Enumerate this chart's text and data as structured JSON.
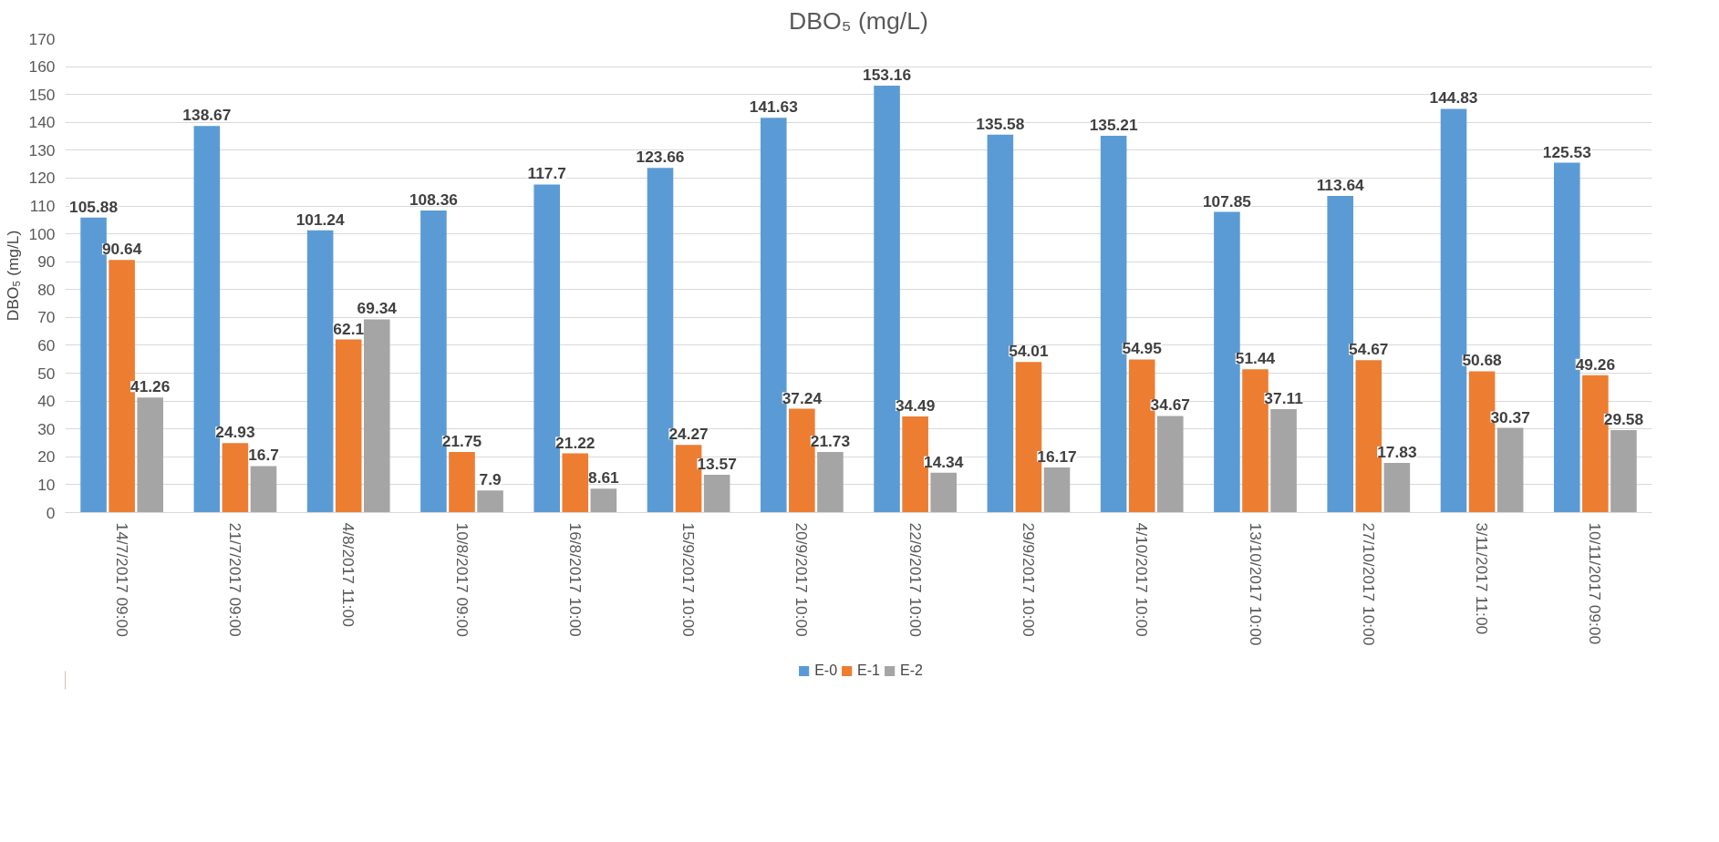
{
  "chart_data": {
    "type": "bar",
    "title": "DBO₅ (mg/L)",
    "ylabel": "DBO₅ (mg/L)",
    "categories": [
      "14/7/2017 09:00",
      "21/7/2017 09:00",
      "4/8/2017 11:00",
      "10/8/2017 09:00",
      "16/8/2017 10:00",
      "15/9/2017 10:00",
      "20/9/2017 10:00",
      "22/9/2017 10:00",
      "29/9/2017 10:00",
      "4/10/2017 10:00",
      "13/10/2017 10:00",
      "27/10/2017 10:00",
      "3/11/2017 11:00",
      "10/11/2017 09:00"
    ],
    "series": [
      {
        "name": "E-0",
        "color": "#5b9bd5",
        "values": [
          105.88,
          138.67,
          101.24,
          108.36,
          117.7,
          123.66,
          141.63,
          153.16,
          135.58,
          135.21,
          107.85,
          113.64,
          144.83,
          125.53
        ]
      },
      {
        "name": "E-1",
        "color": "#ed7d31",
        "values": [
          90.64,
          24.93,
          62.1,
          21.75,
          21.22,
          24.27,
          37.24,
          34.49,
          54.01,
          54.95,
          51.44,
          54.67,
          50.68,
          49.26
        ]
      },
      {
        "name": "E-2",
        "color": "#a5a5a5",
        "values": [
          41.26,
          16.7,
          69.34,
          7.9,
          8.61,
          13.57,
          21.73,
          14.34,
          16.17,
          34.67,
          37.11,
          17.83,
          30.37,
          29.58
        ]
      }
    ],
    "ylim": [
      0,
      170
    ],
    "yticks": [
      0,
      10,
      20,
      30,
      40,
      50,
      60,
      70,
      80,
      90,
      100,
      110,
      120,
      130,
      140,
      150,
      160,
      170
    ],
    "grid": "y",
    "legend": "bottom",
    "data_labels": true
  }
}
